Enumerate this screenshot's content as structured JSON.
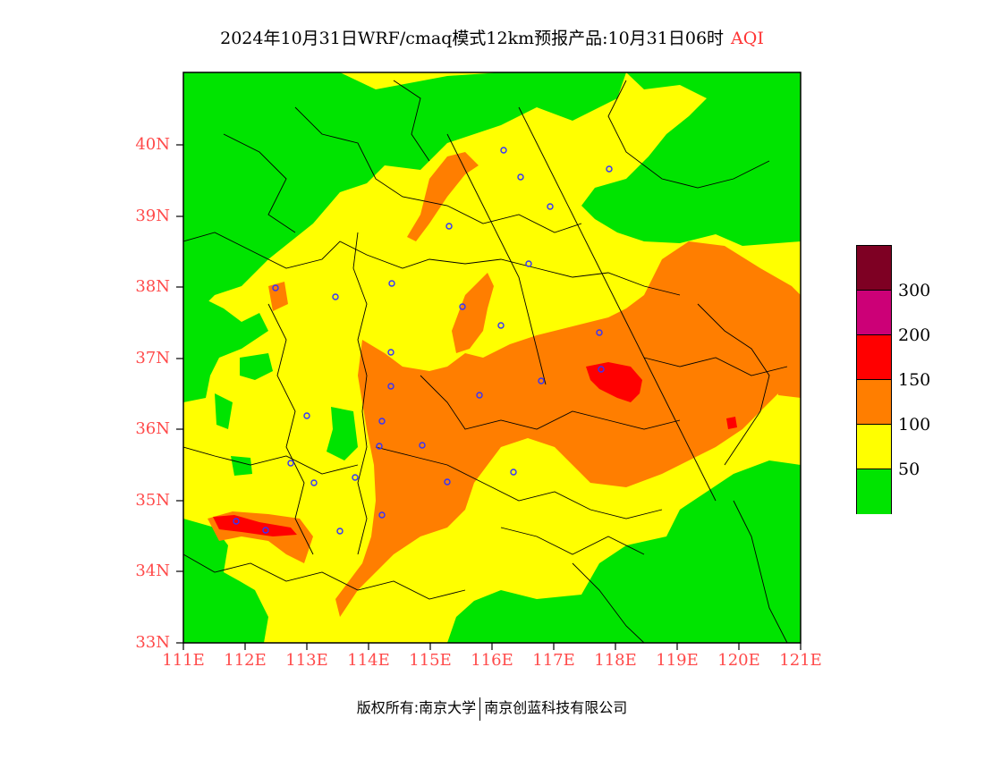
{
  "title": {
    "main": "2024年10月31日WRF/cmaq模式12km预报产品:10月31日06时",
    "variable": "AQI"
  },
  "map": {
    "lat_labels": [
      "40N",
      "39N",
      "38N",
      "37N",
      "36N",
      "35N",
      "34N",
      "33N"
    ],
    "lon_labels": [
      "111E",
      "112E",
      "113E",
      "114E",
      "115E",
      "116E",
      "117E",
      "118E",
      "119E",
      "120E",
      "121E"
    ],
    "colors": {
      "good": "#00e400",
      "moderate": "#ffff00",
      "usg": "#ff7e00",
      "unhealthy": "#ff0000",
      "very_unhealthy": "#cc0077",
      "hazardous": "#7e0023",
      "label_red": "#ff4a4a",
      "station": "#3333ff"
    }
  },
  "colorbar": {
    "levels": [
      "300",
      "200",
      "150",
      "100",
      "50"
    ],
    "colors": [
      "#7e0023",
      "#cc0077",
      "#ff0000",
      "#ff7e00",
      "#ffff00",
      "#00e400"
    ]
  },
  "footer": {
    "left": "版权所有:南京大学",
    "right": "南京创蓝科技有限公司"
  }
}
